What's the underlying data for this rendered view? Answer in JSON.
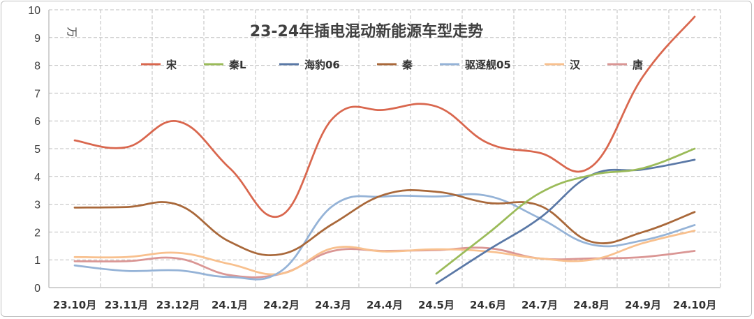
{
  "chart_data": {
    "type": "line",
    "title": "23-24年插电混动新能源车型走势",
    "unit": "万",
    "ylim": [
      0,
      10
    ],
    "yticks": [
      "0",
      "1",
      "2",
      "3",
      "4",
      "5",
      "6",
      "7",
      "8",
      "9",
      "10"
    ],
    "grid": true,
    "legend_position": "top",
    "categories": [
      "23.10月",
      "23.11月",
      "23.12月",
      "24.1月",
      "24.2月",
      "24.3月",
      "24.4月",
      "24.5月",
      "24.6月",
      "24.7月",
      "24.8月",
      "24.9月",
      "24.10月"
    ],
    "series": [
      {
        "name": "宋",
        "color": "#d9674e",
        "values": [
          5.3,
          5.05,
          5.98,
          4.3,
          2.6,
          6.1,
          6.4,
          6.52,
          5.2,
          4.85,
          4.35,
          7.6,
          9.75
        ]
      },
      {
        "name": "秦L",
        "color": "#9bbb59",
        "values": [
          null,
          null,
          null,
          null,
          null,
          null,
          null,
          0.5,
          1.95,
          3.4,
          4.05,
          4.3,
          5.0
        ]
      },
      {
        "name": "海豹06",
        "color": "#5a78a6",
        "values": [
          null,
          null,
          null,
          null,
          null,
          null,
          null,
          0.15,
          1.35,
          2.5,
          4.05,
          4.25,
          4.6
        ]
      },
      {
        "name": "秦",
        "color": "#a9683a",
        "values": [
          2.88,
          2.9,
          2.98,
          1.65,
          1.2,
          2.3,
          3.35,
          3.45,
          3.05,
          2.95,
          1.65,
          2.0,
          2.72
        ]
      },
      {
        "name": "驱逐舰05",
        "color": "#95b3d7",
        "values": [
          0.8,
          0.6,
          0.62,
          0.38,
          0.6,
          2.95,
          3.28,
          3.28,
          3.3,
          2.5,
          1.55,
          1.7,
          2.25
        ]
      },
      {
        "name": "汉",
        "color": "#f8c08e",
        "values": [
          1.1,
          1.1,
          1.25,
          0.85,
          0.5,
          1.42,
          1.3,
          1.38,
          1.3,
          1.05,
          1.0,
          1.6,
          2.05
        ]
      },
      {
        "name": "唐",
        "color": "#da9694",
        "values": [
          0.95,
          0.95,
          1.05,
          0.45,
          0.5,
          1.32,
          1.32,
          1.35,
          1.42,
          1.05,
          1.05,
          1.1,
          1.32
        ]
      }
    ]
  }
}
